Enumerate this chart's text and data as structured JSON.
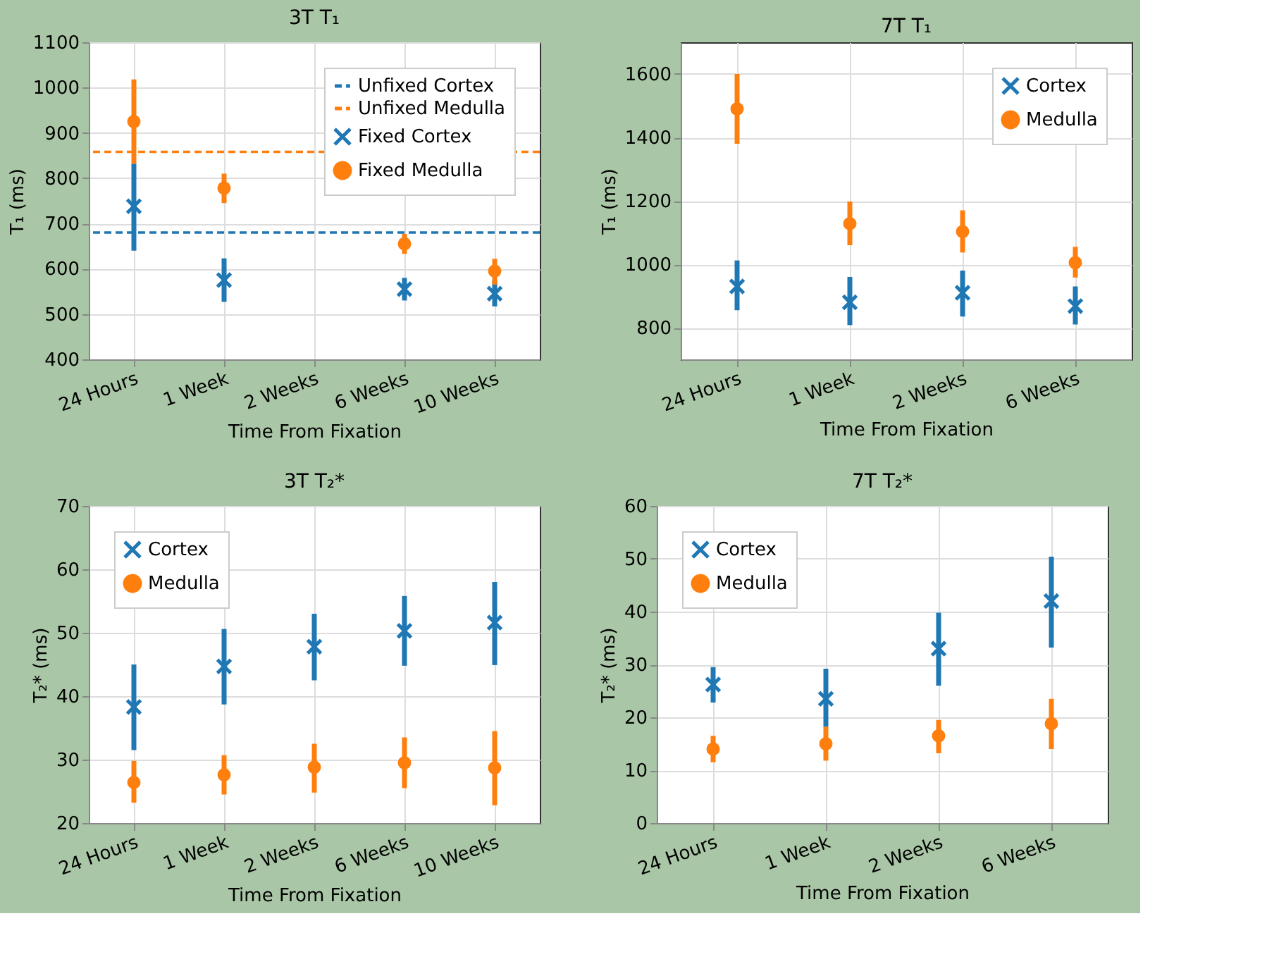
{
  "chart_data": [
    {
      "type": "scatter",
      "title": "3T T₁",
      "xlabel": "Time From Fixation",
      "ylabel": "T₁ (ms)",
      "categories": [
        "24 Hours",
        "1 Week",
        "2 Weeks",
        "6 Weeks",
        "10 Weeks"
      ],
      "ylim": [
        400,
        1100
      ],
      "yticks": [
        400,
        500,
        600,
        700,
        800,
        900,
        1000,
        1100
      ],
      "grid": true,
      "legend": "top right",
      "series": [
        {
          "name": "Fixed Cortex",
          "color": "#1f77b4",
          "marker": "cross",
          "values": [
            738,
            575,
            null,
            555,
            545
          ],
          "errors": [
            [
              640,
              832
            ],
            [
              527,
              623
            ],
            null,
            [
              530,
              580
            ],
            [
              517,
              573
            ]
          ]
        },
        {
          "name": "Fixed Medulla",
          "color": "#ff7f0e",
          "marker": "circle",
          "values": [
            925,
            778,
            null,
            655,
            595
          ],
          "errors": [
            [
              832,
              1018
            ],
            [
              745,
              810
            ],
            null,
            [
              633,
              677
            ],
            [
              565,
              622
            ]
          ]
        }
      ],
      "ref_lines": [
        {
          "axis": "y",
          "value": 680,
          "label": "Unfixed Cortex",
          "color": "#1f77b4",
          "line_style": "dashed"
        },
        {
          "axis": "y",
          "value": 858,
          "label": "Unfixed Medulla",
          "color": "#ff7f0e",
          "line_style": "dashed"
        }
      ]
    },
    {
      "type": "scatter",
      "title": "7T T₁",
      "xlabel": "Time From Fixation",
      "ylabel": "T₁ (ms)",
      "categories": [
        "24 Hours",
        "1 Week",
        "2 Weeks",
        "6 Weeks"
      ],
      "ylim": [
        700,
        1700
      ],
      "yticks": [
        800,
        1000,
        1200,
        1400,
        1600
      ],
      "grid": true,
      "legend": "top right",
      "series": [
        {
          "name": "Cortex",
          "color": "#1f77b4",
          "marker": "cross",
          "values": [
            930,
            880,
            910,
            868
          ],
          "errors": [
            [
              855,
              1012
            ],
            [
              808,
              960
            ],
            [
              835,
              980
            ],
            [
              810,
              930
            ]
          ]
        },
        {
          "name": "Medulla",
          "color": "#ff7f0e",
          "marker": "circle",
          "values": [
            1490,
            1128,
            1103,
            1005
          ],
          "errors": [
            [
              1380,
              1600
            ],
            [
              1060,
              1198
            ],
            [
              1037,
              1170
            ],
            [
              958,
              1055
            ]
          ]
        }
      ]
    },
    {
      "type": "scatter",
      "title": "3T T₂*",
      "xlabel": "Time From Fixation",
      "ylabel": "T₂* (ms)",
      "categories": [
        "24 Hours",
        "1 Week",
        "2 Weeks",
        "6 Weeks",
        "10 Weeks"
      ],
      "ylim": [
        20,
        70
      ],
      "yticks": [
        20,
        30,
        40,
        50,
        60,
        70
      ],
      "grid": true,
      "legend": "top left",
      "series": [
        {
          "name": "Cortex",
          "color": "#1f77b4",
          "marker": "cross",
          "values": [
            38.3,
            44.7,
            47.8,
            50.3,
            51.6
          ],
          "errors": [
            [
              31.5,
              45
            ],
            [
              38.7,
              50.6
            ],
            [
              42.5,
              53
            ],
            [
              44.8,
              55.8
            ],
            [
              44.9,
              58
            ]
          ]
        },
        {
          "name": "Medulla",
          "color": "#ff7f0e",
          "marker": "circle",
          "values": [
            26.4,
            27.6,
            28.8,
            29.5,
            28.7
          ],
          "errors": [
            [
              23.2,
              29.8
            ],
            [
              24.5,
              30.7
            ],
            [
              24.8,
              32.5
            ],
            [
              25.5,
              33.5
            ],
            [
              22.8,
              34.5
            ]
          ]
        }
      ]
    },
    {
      "type": "scatter",
      "title": "7T T₂*",
      "xlabel": "Time From Fixation",
      "ylabel": "T₂* (ms)",
      "categories": [
        "24 Hours",
        "1 Week",
        "2 Weeks",
        "6 Weeks"
      ],
      "ylim": [
        0,
        60
      ],
      "yticks": [
        0,
        10,
        20,
        30,
        40,
        50,
        60
      ],
      "grid": true,
      "legend": "top left",
      "series": [
        {
          "name": "Cortex",
          "color": "#1f77b4",
          "marker": "cross",
          "values": [
            26.2,
            23.5,
            33,
            42
          ],
          "errors": [
            [
              22.8,
              29.5
            ],
            [
              18.2,
              29.2
            ],
            [
              26,
              39.8
            ],
            [
              33.2,
              50.4
            ]
          ]
        },
        {
          "name": "Medulla",
          "color": "#ff7f0e",
          "marker": "circle",
          "values": [
            14,
            15,
            16.5,
            18.8
          ],
          "errors": [
            [
              11.5,
              16.5
            ],
            [
              11.8,
              18.2
            ],
            [
              13.2,
              19.5
            ],
            [
              14,
              23.5
            ]
          ]
        }
      ]
    }
  ]
}
